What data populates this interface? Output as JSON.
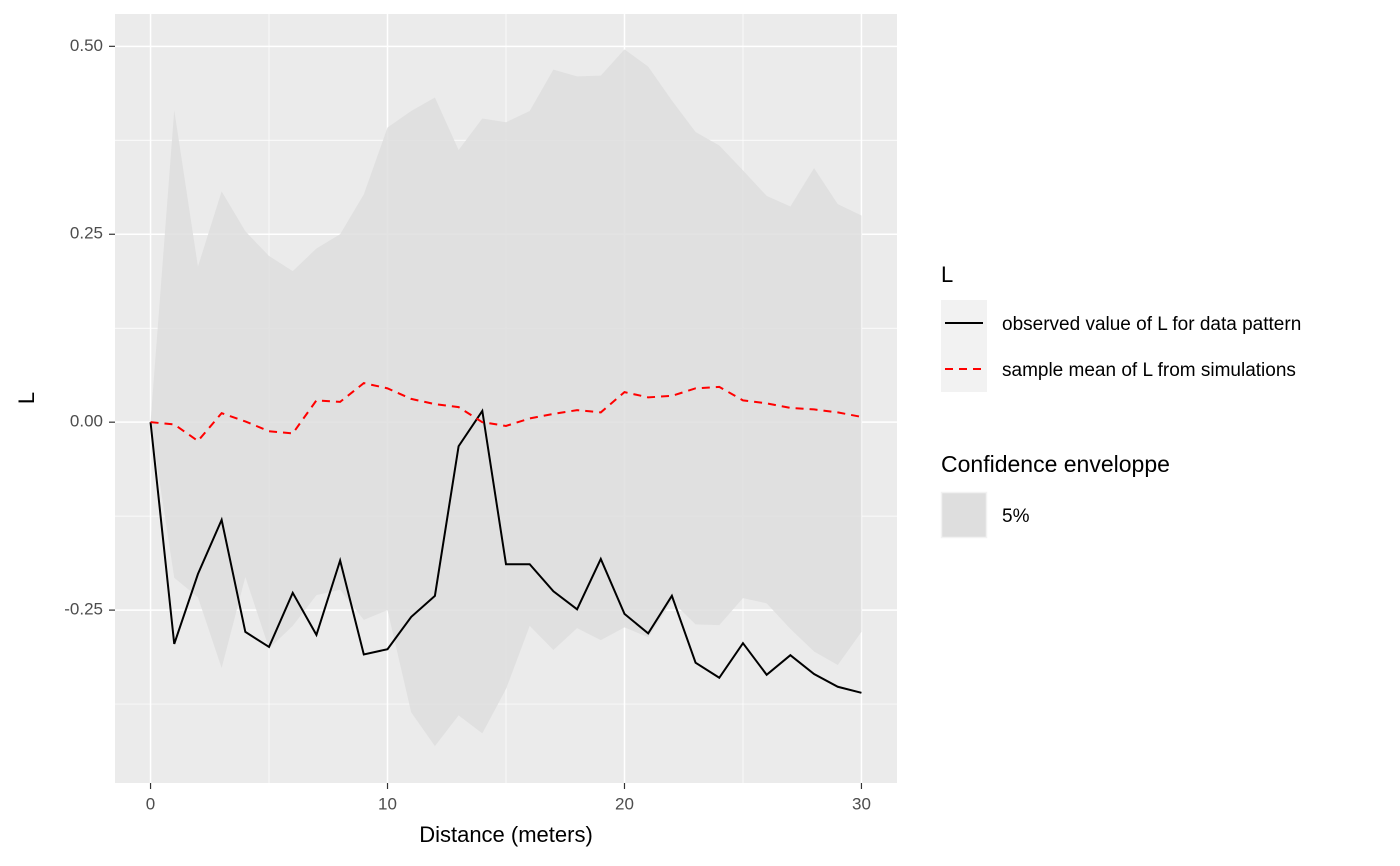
{
  "chart_data": {
    "type": "line",
    "x_label": "Distance (meters)",
    "y_label": "L",
    "x": [
      0,
      1,
      2,
      3,
      4,
      5,
      6,
      7,
      8,
      9,
      10,
      11,
      12,
      13,
      14,
      15,
      16,
      17,
      18,
      19,
      20,
      21,
      22,
      23,
      24,
      25,
      26,
      27,
      28,
      29,
      30
    ],
    "xlim": [
      -1.5,
      31.5
    ],
    "ylim": [
      -0.48,
      0.543
    ],
    "xticks": [
      0,
      10,
      20,
      30
    ],
    "yticks": [
      {
        "value": -0.25,
        "label": "-0.25"
      },
      {
        "value": 0,
        "label": "0.00"
      },
      {
        "value": 0.25,
        "label": "0.25"
      },
      {
        "value": 0.5,
        "label": "0.50"
      }
    ],
    "xminor": [
      5,
      15,
      25
    ],
    "yminor": [
      -0.375,
      -0.125,
      0.125,
      0.375
    ],
    "grid": true,
    "legend_position": "right",
    "legend_title": "L",
    "series": [
      {
        "name": "observed value of L for data pattern",
        "color": "#000000",
        "dash": "solid",
        "values": [
          0,
          -0.295,
          -0.202,
          -0.13,
          -0.279,
          -0.299,
          -0.227,
          -0.283,
          -0.184,
          -0.309,
          -0.302,
          -0.259,
          -0.231,
          -0.032,
          0.015,
          -0.189,
          -0.189,
          -0.225,
          -0.249,
          -0.182,
          -0.255,
          -0.281,
          -0.231,
          -0.32,
          -0.34,
          -0.294,
          -0.336,
          -0.31,
          -0.335,
          -0.352,
          -0.36
        ]
      },
      {
        "name": "sample mean of L from simulations",
        "color": "#ff0000",
        "dash": "dashed",
        "values": [
          0,
          -0.003,
          -0.025,
          0.012,
          0.001,
          -0.012,
          -0.015,
          0.029,
          0.027,
          0.052,
          0.045,
          0.031,
          0.024,
          0.02,
          0.0,
          -0.005,
          0.005,
          0.011,
          0.016,
          0.013,
          0.04,
          0.033,
          0.035,
          0.045,
          0.047,
          0.029,
          0.025,
          0.019,
          0.017,
          0.013,
          0.007
        ]
      }
    ],
    "ribbon": {
      "legend_title": "Confidence enveloppe",
      "name": "5%",
      "color": "#dedede",
      "upper": [
        0,
        0.415,
        0.207,
        0.307,
        0.254,
        0.221,
        0.201,
        0.231,
        0.25,
        0.303,
        0.392,
        0.414,
        0.432,
        0.362,
        0.404,
        0.399,
        0.414,
        0.469,
        0.46,
        0.461,
        0.496,
        0.473,
        0.428,
        0.386,
        0.368,
        0.335,
        0.301,
        0.287,
        0.338,
        0.29,
        0.275
      ],
      "lower": [
        0,
        -0.207,
        -0.233,
        -0.327,
        -0.206,
        -0.301,
        -0.271,
        -0.23,
        -0.223,
        -0.263,
        -0.25,
        -0.386,
        -0.431,
        -0.39,
        -0.414,
        -0.355,
        -0.271,
        -0.303,
        -0.274,
        -0.29,
        -0.273,
        -0.286,
        -0.238,
        -0.269,
        -0.27,
        -0.234,
        -0.241,
        -0.275,
        -0.305,
        -0.323,
        -0.279
      ]
    }
  }
}
